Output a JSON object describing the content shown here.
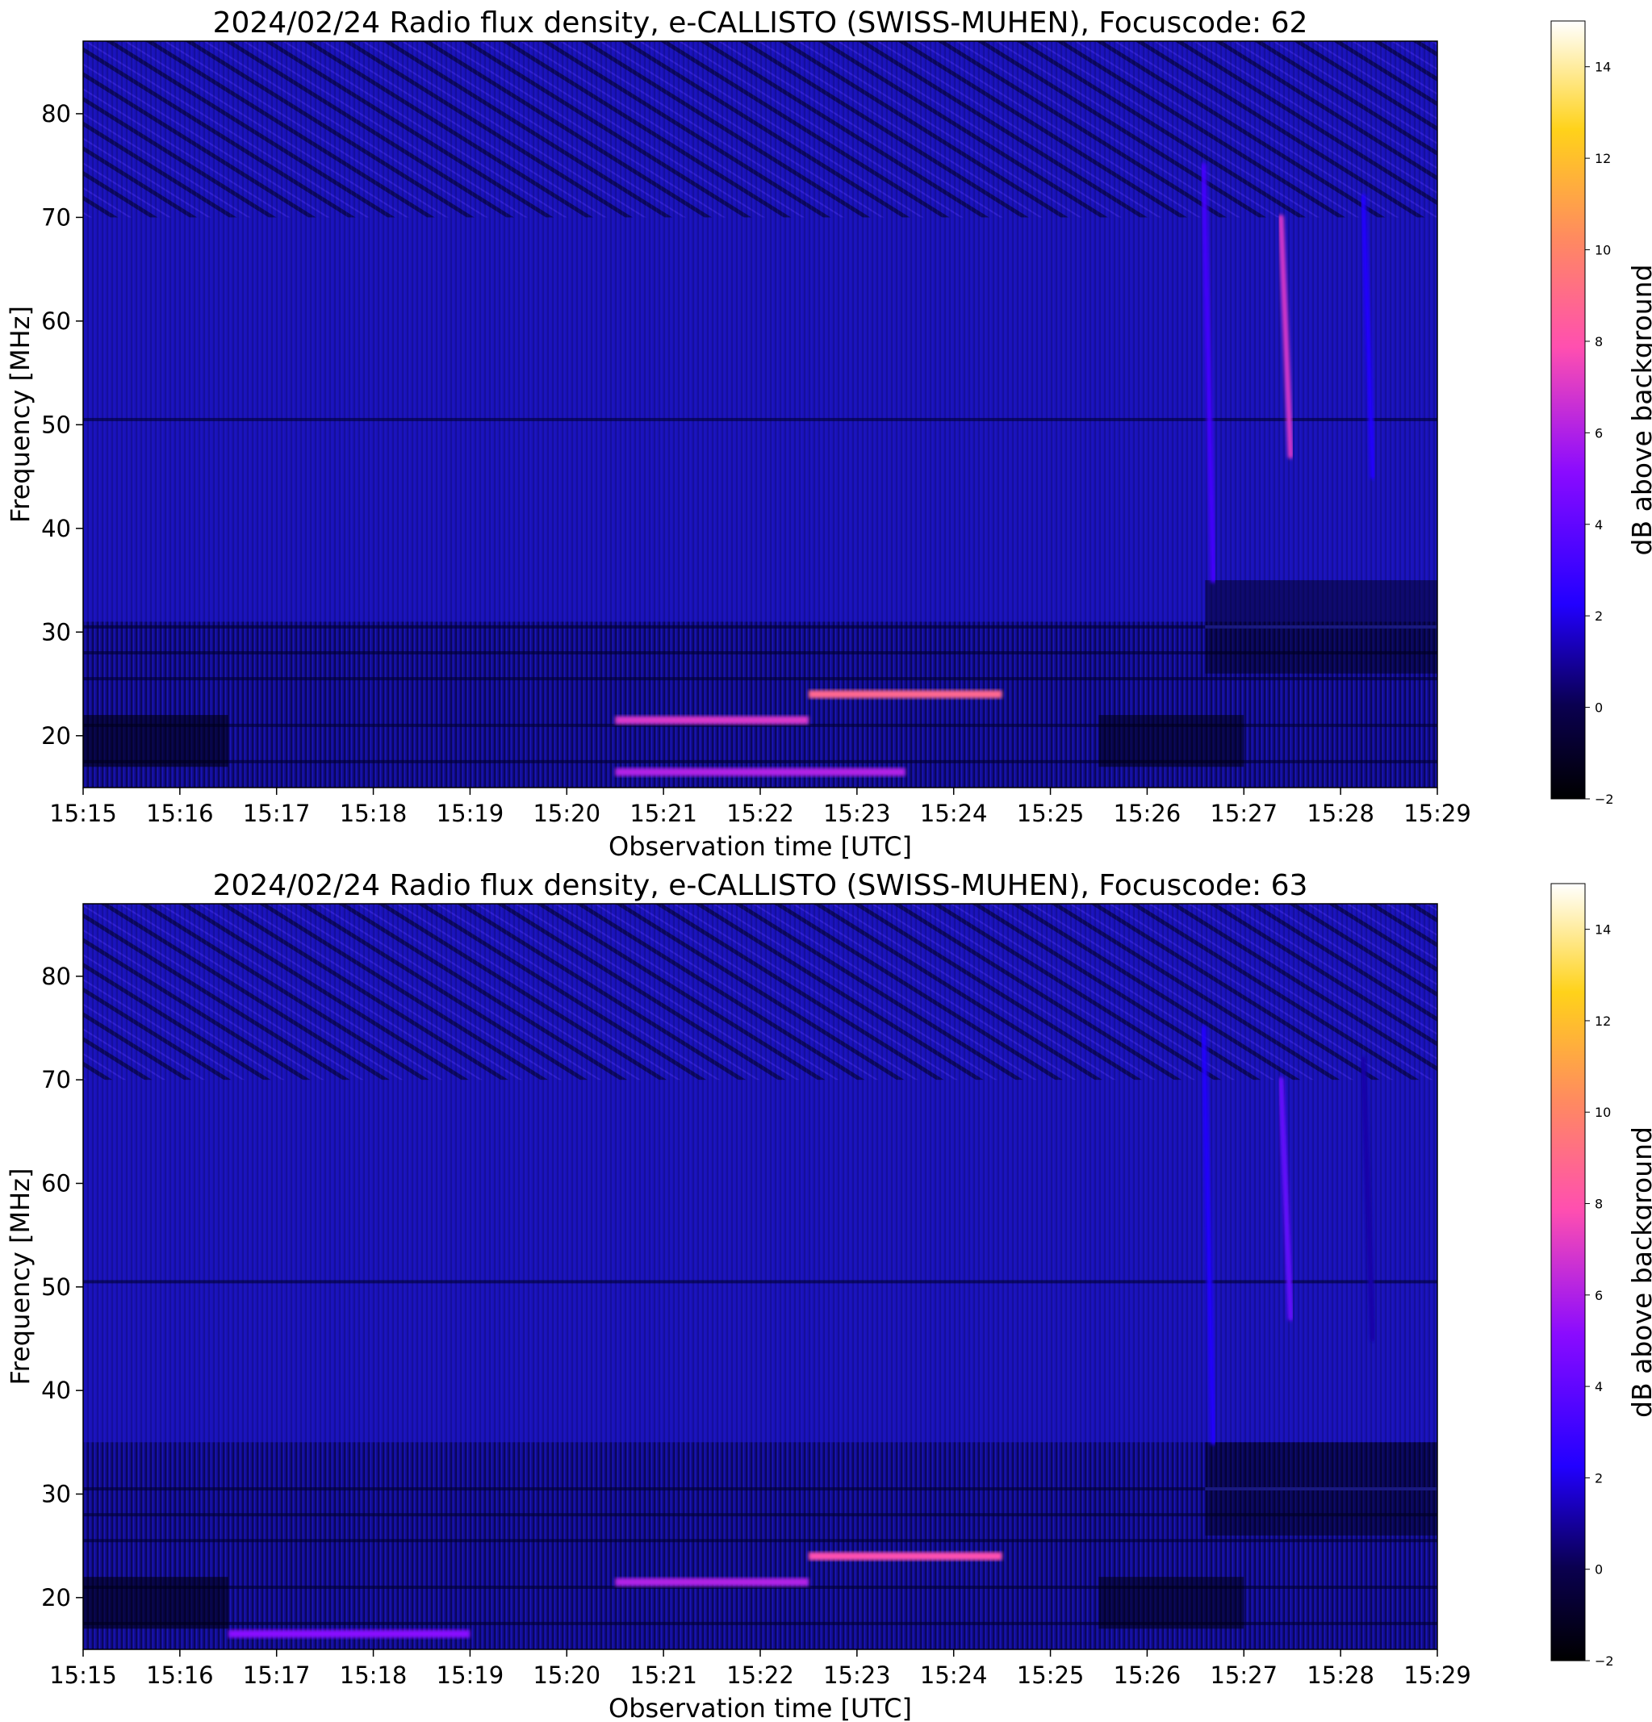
{
  "chart_data": [
    {
      "type": "heatmap",
      "title": "2024/02/24  Radio flux density, e-CALLISTO (SWISS-MUHEN), Focuscode: 62",
      "xlabel": "Observation time [UTC]",
      "ylabel": "Frequency [MHz]",
      "x_ticks": [
        "15:15",
        "15:16",
        "15:17",
        "15:18",
        "15:19",
        "15:20",
        "15:21",
        "15:22",
        "15:23",
        "15:24",
        "15:25",
        "15:26",
        "15:27",
        "15:28",
        "15:29"
      ],
      "xlim": [
        "15:15",
        "15:29"
      ],
      "y_ticks": [
        20,
        30,
        40,
        50,
        60,
        70,
        80
      ],
      "ylim": [
        15,
        87
      ],
      "colorbar": {
        "label": "dB above background",
        "ticks": [
          -2,
          0,
          2,
          4,
          6,
          8,
          10,
          12,
          14
        ],
        "range": [
          -2,
          15
        ],
        "colormap": "gnuplot2"
      },
      "features": [
        {
          "name": "type III burst",
          "time_min": 11.65,
          "freq_range": [
            35,
            75
          ],
          "db": 3
        },
        {
          "name": "type III burst",
          "time_min": 12.45,
          "freq_range": [
            47,
            70
          ],
          "db": 7
        },
        {
          "name": "type III burst",
          "time_min": 13.3,
          "freq_range": [
            45,
            72
          ],
          "db": 2
        },
        {
          "name": "narrowband emission",
          "time_range": [
            7.5,
            9.5
          ],
          "freq_mhz": 24,
          "db": 9
        },
        {
          "name": "narrowband emission",
          "time_range": [
            5.5,
            7.5
          ],
          "freq_mhz": 21.5,
          "db": 7
        },
        {
          "name": "narrowband emission",
          "time_range": [
            5.5,
            8.5
          ],
          "freq_mhz": 16.5,
          "db": 6
        }
      ]
    },
    {
      "type": "heatmap",
      "title": "2024/02/24  Radio flux density, e-CALLISTO (SWISS-MUHEN), Focuscode: 63",
      "xlabel": "Observation time [UTC]",
      "ylabel": "Frequency [MHz]",
      "x_ticks": [
        "15:15",
        "15:16",
        "15:17",
        "15:18",
        "15:19",
        "15:20",
        "15:21",
        "15:22",
        "15:23",
        "15:24",
        "15:25",
        "15:26",
        "15:27",
        "15:28",
        "15:29"
      ],
      "xlim": [
        "15:15",
        "15:29"
      ],
      "y_ticks": [
        20,
        30,
        40,
        50,
        60,
        70,
        80
      ],
      "ylim": [
        15,
        87
      ],
      "colorbar": {
        "label": "dB above background",
        "ticks": [
          -2,
          0,
          2,
          4,
          6,
          8,
          10,
          12,
          14
        ],
        "range": [
          -2,
          15
        ],
        "colormap": "gnuplot2"
      },
      "features": [
        {
          "name": "type III burst",
          "time_min": 11.65,
          "freq_range": [
            35,
            75
          ],
          "db": 2
        },
        {
          "name": "type III burst",
          "time_min": 12.45,
          "freq_range": [
            47,
            70
          ],
          "db": 4
        },
        {
          "name": "type III burst",
          "time_min": 13.3,
          "freq_range": [
            45,
            72
          ],
          "db": 1
        },
        {
          "name": "narrowband emission",
          "time_range": [
            7.5,
            9.5
          ],
          "freq_mhz": 24,
          "db": 8
        },
        {
          "name": "narrowband emission",
          "time_range": [
            5.5,
            7.5
          ],
          "freq_mhz": 21.5,
          "db": 6
        },
        {
          "name": "narrowband emission",
          "time_range": [
            1.5,
            4.0
          ],
          "freq_mhz": 16.5,
          "db": 5
        }
      ]
    }
  ]
}
